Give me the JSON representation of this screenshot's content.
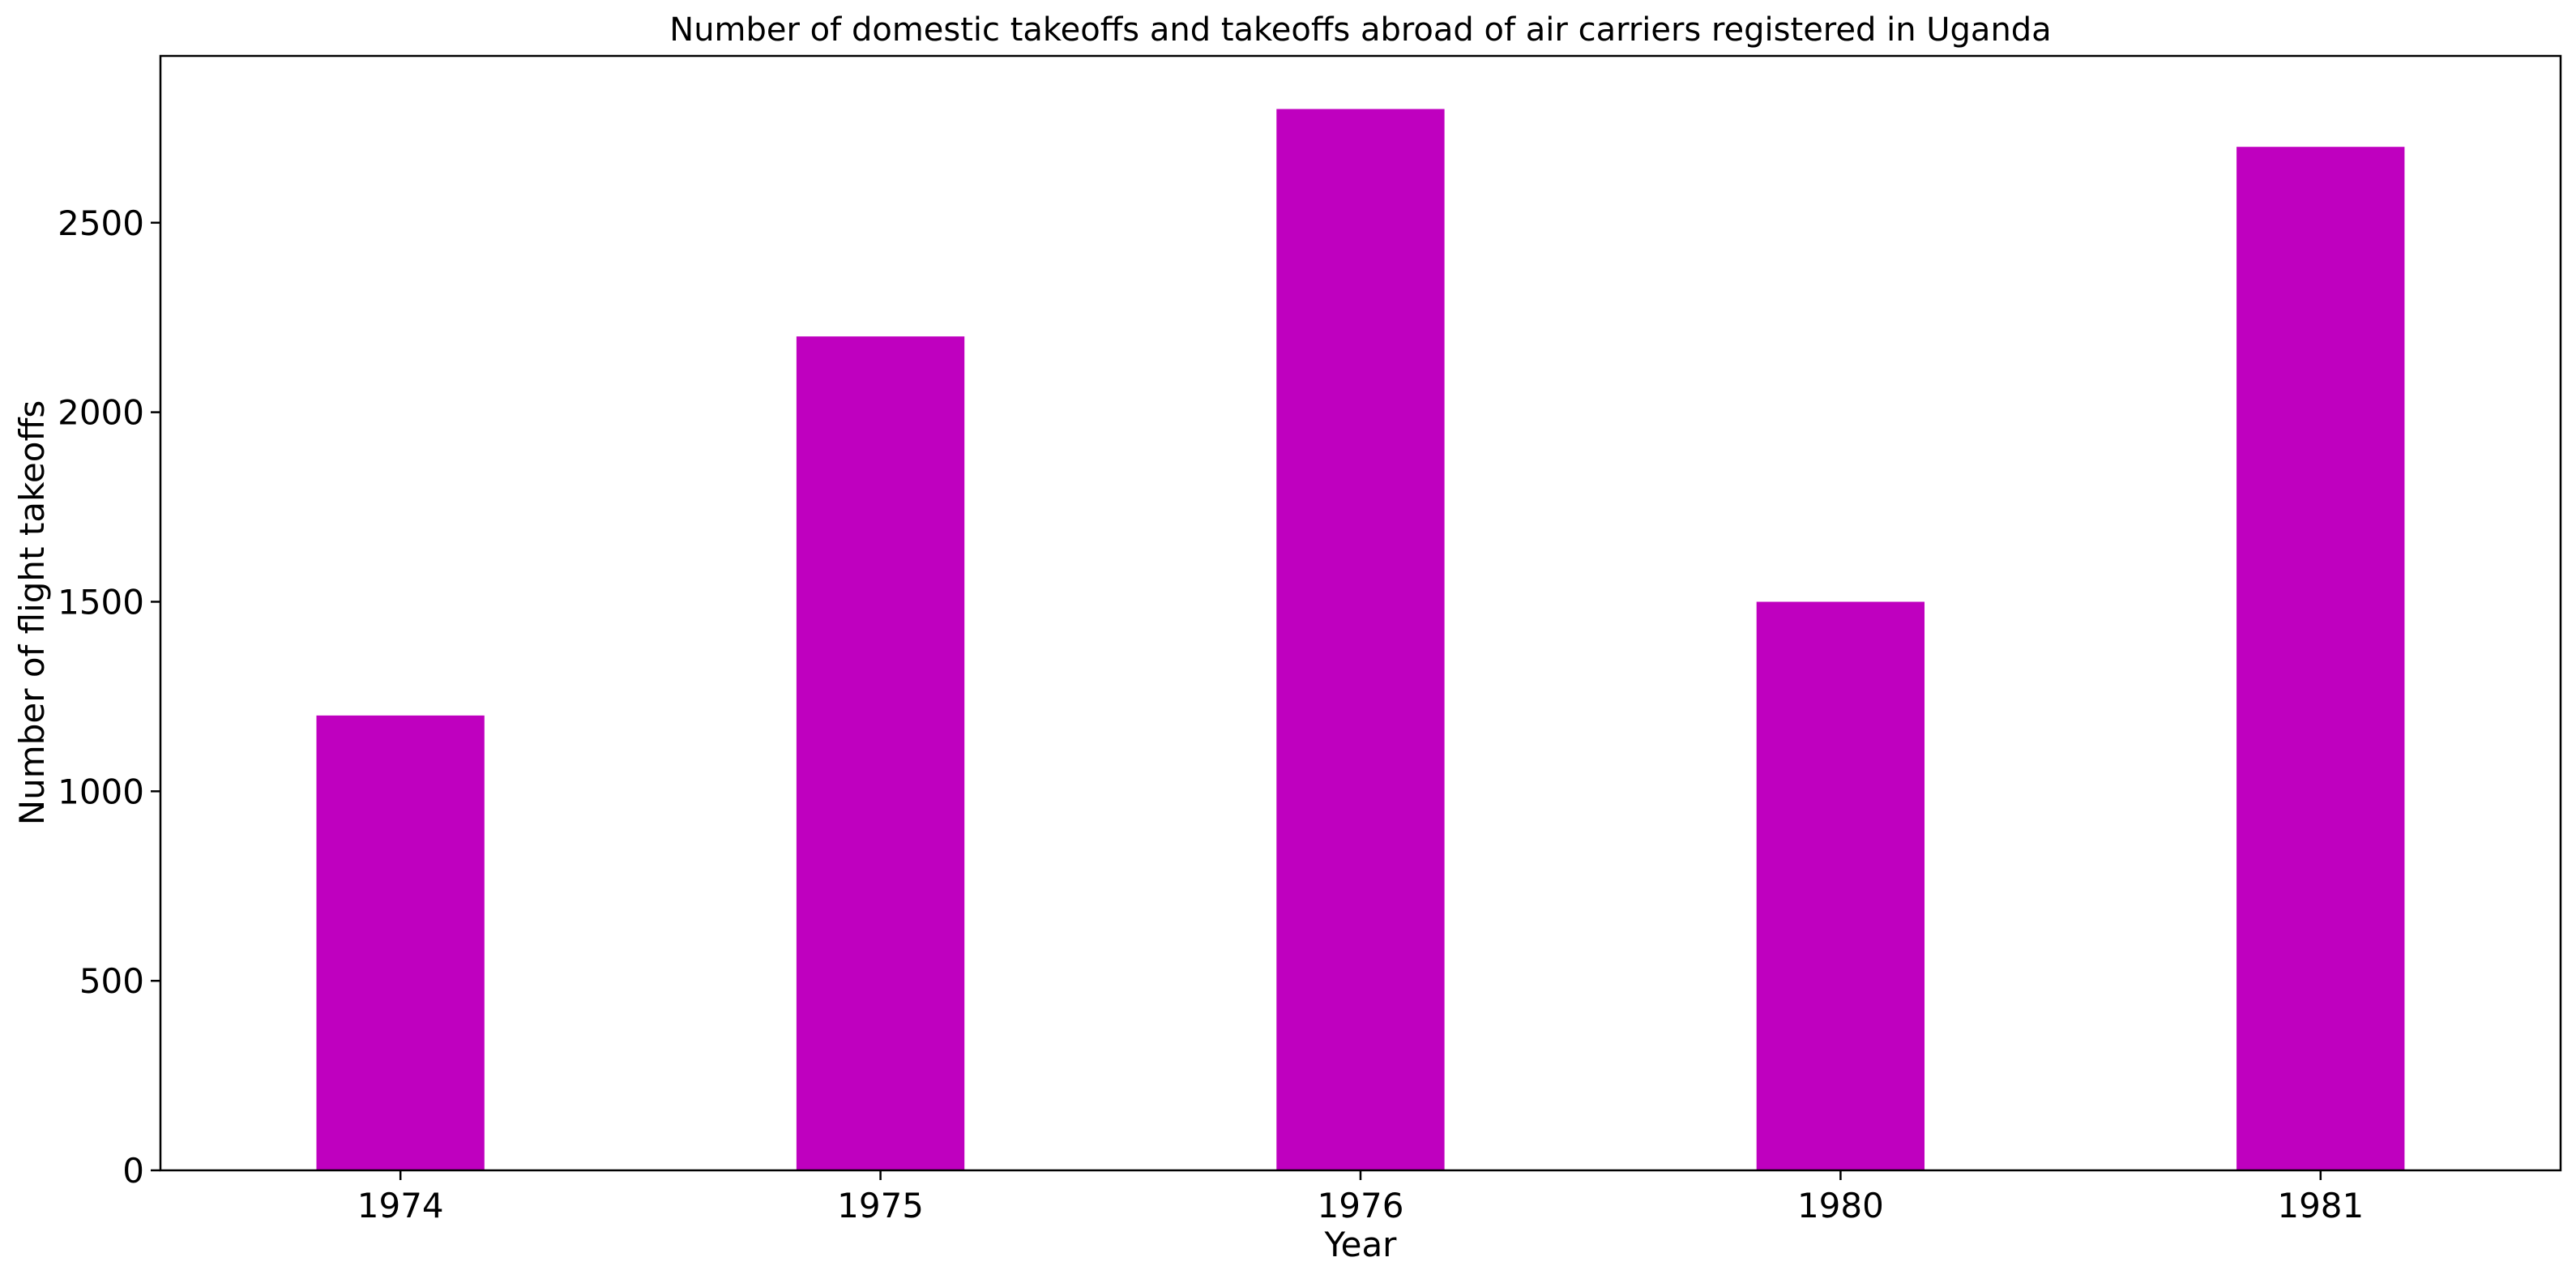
{
  "chart_data": {
    "type": "bar",
    "title": "Number of domestic takeoffs and takeoffs abroad of air carriers registered in Uganda",
    "xlabel": "Year",
    "ylabel": "Number of flight takeoffs",
    "categories": [
      "1974",
      "1975",
      "1976",
      "1980",
      "1981"
    ],
    "values": [
      1200,
      2200,
      2800,
      1500,
      2700
    ],
    "ylim": [
      0,
      2940
    ],
    "yticks": [
      0,
      500,
      1000,
      1500,
      2000,
      2500
    ],
    "bar_color": "#bf00bf",
    "grid": false,
    "legend": "none"
  }
}
